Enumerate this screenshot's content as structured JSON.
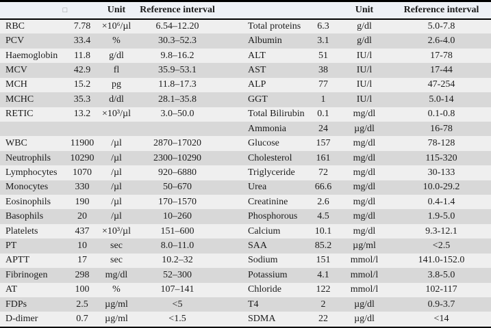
{
  "header_left": {
    "param": "□",
    "unit": "Unit",
    "ref": "Reference interval"
  },
  "header_right": {
    "param": "",
    "unit": "Unit",
    "ref": "Reference interval"
  },
  "colors": {
    "header_bg": "#eef1f6",
    "row_light": "#efefef",
    "row_shaded": "#d8d8d8",
    "border": "#000000"
  },
  "rows_left": [
    {
      "name": "RBC",
      "value": "7.78",
      "unit": "×10⁶/µl",
      "ref": "6.54–12.20"
    },
    {
      "name": "PCV",
      "value": "33.4",
      "unit": "%",
      "ref": "30.3–52.3"
    },
    {
      "name": "Haemoglobin",
      "value": "11.8",
      "unit": "g/dl",
      "ref": "9.8–16.2"
    },
    {
      "name": "MCV",
      "value": "42.9",
      "unit": "fl",
      "ref": "35.9–53.1"
    },
    {
      "name": "MCH",
      "value": "15.2",
      "unit": "pg",
      "ref": "11.8–17.3"
    },
    {
      "name": "MCHC",
      "value": "35.3",
      "unit": "d/dl",
      "ref": "28.1–35.8"
    },
    {
      "name": "RETIC",
      "value": "13.2",
      "unit": "×10³/µl",
      "ref": "3.0–50.0"
    },
    {
      "name": "",
      "value": "",
      "unit": "",
      "ref": ""
    },
    {
      "name": "WBC",
      "value": "11900",
      "unit": "/µl",
      "ref": "2870–17020"
    },
    {
      "name": "Neutrophils",
      "value": "10290",
      "unit": "/µl",
      "ref": "2300–10290"
    },
    {
      "name": "Lymphocytes",
      "value": "1070",
      "unit": "/µl",
      "ref": "920–6880"
    },
    {
      "name": "Monocytes",
      "value": "330",
      "unit": "/µl",
      "ref": "50–670"
    },
    {
      "name": "Eosinophils",
      "value": "190",
      "unit": "/µl",
      "ref": "170–1570"
    },
    {
      "name": "Basophils",
      "value": "20",
      "unit": "/µl",
      "ref": "10–260"
    },
    {
      "name": "Platelets",
      "value": "437",
      "unit": "×10³/µl",
      "ref": "151–600"
    },
    {
      "name": "PT",
      "value": "10",
      "unit": "sec",
      "ref": "8.0–11.0"
    },
    {
      "name": "APTT",
      "value": "17",
      "unit": "sec",
      "ref": "10.2–32"
    },
    {
      "name": "Fibrinogen",
      "value": "298",
      "unit": "mg/dl",
      "ref": "52–300"
    },
    {
      "name": "AT",
      "value": "100",
      "unit": "%",
      "ref": "107–141"
    },
    {
      "name": "FDPs",
      "value": "2.5",
      "unit": "µg/ml",
      "ref": "<5"
    },
    {
      "name": "D-dimer",
      "value": "0.7",
      "unit": "µg/ml",
      "ref": "<1.5"
    }
  ],
  "rows_right": [
    {
      "name": "Total proteins",
      "value": "6.3",
      "unit": "g/dl",
      "ref": "5.0-7.8"
    },
    {
      "name": "Albumin",
      "value": "3.1",
      "unit": "g/dl",
      "ref": "2.6-4.0"
    },
    {
      "name": "ALT",
      "value": "51",
      "unit": "IU/l",
      "ref": "17-78"
    },
    {
      "name": "AST",
      "value": "38",
      "unit": "IU/l",
      "ref": "17-44"
    },
    {
      "name": "ALP",
      "value": "77",
      "unit": "IU/l",
      "ref": "47-254"
    },
    {
      "name": "GGT",
      "value": "1",
      "unit": "IU/l",
      "ref": "5.0-14"
    },
    {
      "name": "Total Bilirubin",
      "value": "0.1",
      "unit": "mg/dl",
      "ref": "0.1-0.8"
    },
    {
      "name": "Ammonia",
      "value": "24",
      "unit": "µg/dl",
      "ref": "16-78"
    },
    {
      "name": "Glucose",
      "value": "157",
      "unit": "mg/dl",
      "ref": "78-128"
    },
    {
      "name": "Cholesterol",
      "value": "161",
      "unit": "mg/dl",
      "ref": "115-320"
    },
    {
      "name": "Triglyceride",
      "value": "72",
      "unit": "mg/dl",
      "ref": "30-133"
    },
    {
      "name": "Urea",
      "value": "66.6",
      "unit": "mg/dl",
      "ref": "10.0-29.2"
    },
    {
      "name": "Creatinine",
      "value": "2.6",
      "unit": "mg/dl",
      "ref": "0.4-1.4"
    },
    {
      "name": "Phosphorous",
      "value": "4.5",
      "unit": "mg/dl",
      "ref": "1.9-5.0"
    },
    {
      "name": "Calcium",
      "value": "10.1",
      "unit": "mg/dl",
      "ref": "9.3-12.1"
    },
    {
      "name": "SAA",
      "value": "85.2",
      "unit": "µg/ml",
      "ref": "<2.5"
    },
    {
      "name": "Sodium",
      "value": "151",
      "unit": "mmol/l",
      "ref": "141.0-152.0"
    },
    {
      "name": "Potassium",
      "value": "4.1",
      "unit": "mmol/l",
      "ref": "3.8-5.0"
    },
    {
      "name": "Chloride",
      "value": "122",
      "unit": "mmol/l",
      "ref": "102-117"
    },
    {
      "name": "T4",
      "value": "2",
      "unit": "µg/dl",
      "ref": "0.9-3.7"
    },
    {
      "name": "SDMA",
      "value": "22",
      "unit": "µg/dl",
      "ref": "<14"
    }
  ]
}
